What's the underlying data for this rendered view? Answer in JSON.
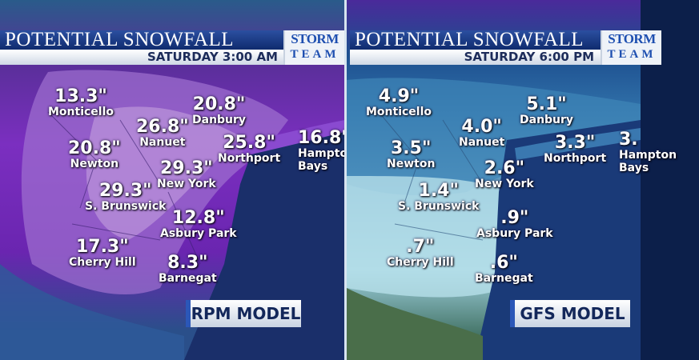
{
  "panels": [
    {
      "title": "POTENTIAL SNOWFALL",
      "subtitle": "SATURDAY   3:00 AM",
      "logo": {
        "line1": "STORM",
        "line2": "TEAM"
      },
      "model": "RPM MODEL",
      "colors": {
        "heavy": "#7b2fc0",
        "heaviest": "#c9a6e0",
        "light": "#2a5b8a"
      },
      "locations": [
        {
          "value": "13.3\"",
          "name": "Monticello"
        },
        {
          "value": "20.8\"",
          "name": "Danbury"
        },
        {
          "value": "26.8\"",
          "name": "Nanuet"
        },
        {
          "value": "25.8\"",
          "name": "Northport"
        },
        {
          "value": "16.8\"",
          "name": "Hampton Bays"
        },
        {
          "value": "20.8\"",
          "name": "Newton"
        },
        {
          "value": "29.3\"",
          "name": "New York"
        },
        {
          "value": "29.3\"",
          "name": "S. Brunswick"
        },
        {
          "value": "12.8\"",
          "name": "Asbury Park"
        },
        {
          "value": "17.3\"",
          "name": "Cherry Hill"
        },
        {
          "value": "8.3\"",
          "name": "Barnegat"
        }
      ]
    },
    {
      "title": "POTENTIAL SNOWFALL",
      "subtitle": "SATURDAY   6:00 PM",
      "logo": {
        "line1": "STORM",
        "line2": "TEAM"
      },
      "model": "GFS MODEL",
      "colors": {
        "heavy": "#1d4f8f",
        "light": "#9fd0de",
        "none": "#3a6a5a"
      },
      "locations": [
        {
          "value": "4.9\"",
          "name": "Monticello"
        },
        {
          "value": "5.1\"",
          "name": "Danbury"
        },
        {
          "value": "4.0\"",
          "name": "Nanuet"
        },
        {
          "value": "3.3\"",
          "name": "Northport"
        },
        {
          "value": "3.",
          "name": "Hampton Bays"
        },
        {
          "value": "3.5\"",
          "name": "Newton"
        },
        {
          "value": "2.6\"",
          "name": "New York"
        },
        {
          "value": "1.4\"",
          "name": "S. Brunswick"
        },
        {
          "value": ".9\"",
          "name": "Asbury Park"
        },
        {
          "value": ".7\"",
          "name": "Cherry Hill"
        },
        {
          "value": ".6\"",
          "name": "Barnegat"
        }
      ]
    }
  ]
}
